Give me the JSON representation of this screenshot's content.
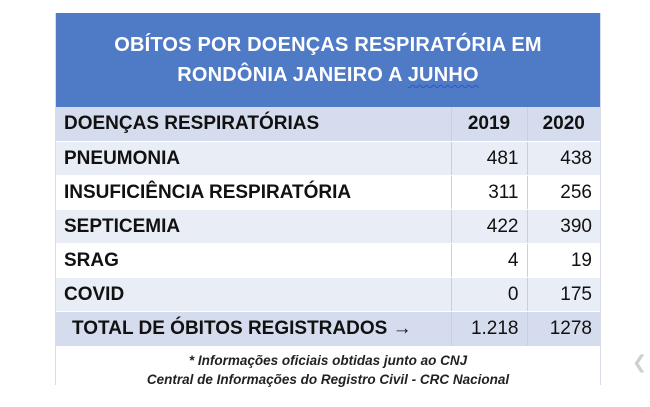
{
  "title": {
    "line1": "OBÍTOS POR DOENÇAS RESPIRATÓRIA EM",
    "line2_prefix": "RONDÔNIA JANEIRO A ",
    "line2_underlined": "JUNHO"
  },
  "table": {
    "headers": [
      "DOENÇAS RESPIRATÓRIAS",
      "2019",
      "2020"
    ],
    "rows": [
      {
        "name": "PNEUMONIA",
        "y2019": "481",
        "y2020": "438"
      },
      {
        "name": "INSUFICIÊNCIA RESPIRATÓRIA",
        "y2019": "311",
        "y2020": "256"
      },
      {
        "name": "SEPTICEMIA",
        "y2019": "422",
        "y2020": "390"
      },
      {
        "name": "SRAG",
        "y2019": "4",
        "y2020": "19"
      },
      {
        "name": "COVID",
        "y2019": "0",
        "y2020": "175"
      }
    ],
    "total": {
      "label": "TOTAL DE ÓBITOS REGISTRADOS →",
      "y2019": "1.218",
      "y2020": "1278"
    }
  },
  "footer": {
    "line1": "* Informações oficiais obtidas junto ao CNJ",
    "line2": "Central de Informações do Registro Civil - CRC Nacional"
  },
  "colors": {
    "header_blue": "#4f7ac5",
    "band": "#d5dced",
    "stripe": "#e9edf5"
  }
}
